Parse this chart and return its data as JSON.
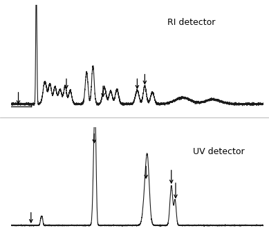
{
  "fig_width": 3.89,
  "fig_height": 3.4,
  "dpi": 100,
  "bg_color": "#ffffff",
  "line_color": "#1a1a1a",
  "label_ri": "RI detector",
  "label_uv": "UV detector",
  "label_fontsize": 9,
  "arrow_color": "black",
  "ri_ylim": [
    -1.5,
    11.0
  ],
  "uv_ylim": [
    -0.5,
    10.0
  ]
}
